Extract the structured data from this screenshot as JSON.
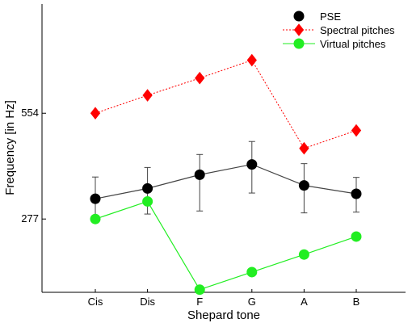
{
  "chart_data": {
    "type": "line",
    "title": "",
    "xlabel": "Shepard tone",
    "ylabel": "Frequency [in Hz]",
    "categories": [
      "Cis",
      "Dis",
      "F",
      "G",
      "A",
      "B"
    ],
    "y_tick_labels": [
      "277",
      "554"
    ],
    "y_ticks": [
      277,
      554
    ],
    "ylim": [
      85,
      840
    ],
    "grid": false,
    "legend_position": "top-right",
    "series": [
      {
        "name": "PSE",
        "color": "#000000",
        "marker": "circle",
        "line_style": "solid",
        "line_color": "#444444",
        "values": [
          330,
          357,
          393,
          420,
          365,
          343
        ],
        "errors_low": [
          272,
          290,
          298,
          345,
          293,
          295
        ],
        "errors_high": [
          387,
          412,
          446,
          480,
          422,
          386
        ]
      },
      {
        "name": "Spectral pitches",
        "color": "#ff0000",
        "marker": "diamond",
        "line_style": "dotted",
        "values": [
          554,
          601,
          646,
          693,
          462,
          509
        ]
      },
      {
        "name": "Virtual pitches",
        "color": "#22ee22",
        "marker": "circle",
        "line_style": "solid",
        "values": [
          277,
          323,
          92,
          138,
          184,
          231
        ]
      }
    ]
  }
}
